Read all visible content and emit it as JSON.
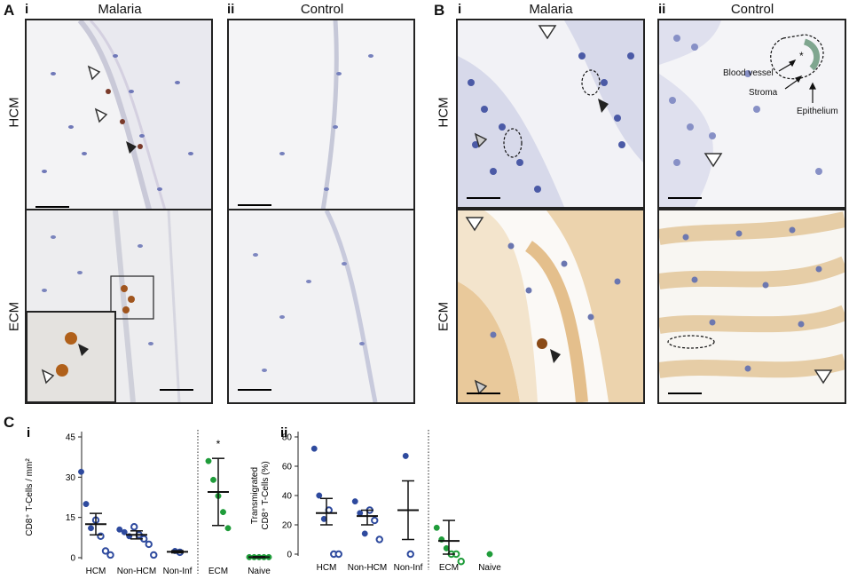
{
  "panel_a": {
    "letter": "A",
    "col_i": {
      "num": "i",
      "title": "Malaria"
    },
    "col_ii": {
      "num": "ii",
      "title": "Control"
    },
    "row_labels": [
      "HCM",
      "ECM"
    ]
  },
  "panel_b": {
    "letter": "B",
    "col_i": {
      "num": "i",
      "title": "Malaria"
    },
    "col_ii": {
      "num": "ii",
      "title": "Control"
    },
    "row_labels": [
      "HCM",
      "ECM"
    ],
    "annotations": {
      "blood_vessel": "Blood vessel",
      "stroma": "Stroma",
      "epithelium": "Epithelium",
      "asterisk": "*"
    }
  },
  "panel_c": {
    "letter": "C"
  },
  "chart_data": [
    {
      "type": "scatter",
      "panel": "i",
      "ylabel": "CD8⁺ T-Cells / mm²",
      "ylim": [
        0,
        45
      ],
      "yticks": [
        0,
        15,
        30,
        45
      ],
      "categories": [
        "HCM",
        "Non-HCM",
        "Non-Inf",
        "ECM",
        "Naive"
      ],
      "significance": {
        "category": "ECM",
        "mark": "*"
      },
      "groups": [
        {
          "category": "HCM",
          "color": "#2e4a9e",
          "mean": 12.5,
          "ci": [
            8.5,
            16.5
          ],
          "filled": [
            32,
            20,
            11
          ],
          "open": [
            14,
            8,
            2.5,
            1
          ]
        },
        {
          "category": "Non-HCM",
          "color": "#2e4a9e",
          "mean": 8.5,
          "ci": [
            7,
            10
          ],
          "filled": [
            10.5,
            9.5,
            8
          ],
          "open": [
            11.5,
            8.5,
            7,
            5,
            1
          ]
        },
        {
          "category": "Non-Inf",
          "color": "#2e4a9e",
          "mean": 2.2,
          "ci": [
            1.8,
            2.6
          ],
          "filled": [
            2.5
          ],
          "open": [
            2
          ]
        },
        {
          "category": "ECM",
          "color": "#1f9c3a",
          "mean": 24.5,
          "ci": [
            12,
            37
          ],
          "filled": [
            36,
            29,
            23,
            17,
            11
          ],
          "open": []
        },
        {
          "category": "Naive",
          "color": "#1f9c3a",
          "mean": 0.2,
          "ci": [
            0,
            0.4
          ],
          "filled": [
            0.2,
            0.2,
            0.2,
            0.2,
            0.2
          ],
          "open": []
        }
      ]
    },
    {
      "type": "scatter",
      "panel": "ii",
      "ylabel": "Transmigrated CD8⁺ T-Cells (%)",
      "ylim": [
        0,
        80
      ],
      "yticks": [
        0,
        20,
        40,
        60,
        80
      ],
      "categories": [
        "HCM",
        "Non-HCM",
        "Non-Inf",
        "ECM",
        "Naive"
      ],
      "groups": [
        {
          "category": "HCM",
          "color": "#2e4a9e",
          "mean": 28,
          "ci": [
            20,
            38
          ],
          "filled": [
            72,
            40,
            24
          ],
          "open": [
            30,
            0,
            0
          ]
        },
        {
          "category": "Non-HCM",
          "color": "#2e4a9e",
          "mean": 26,
          "ci": [
            20,
            30
          ],
          "filled": [
            36,
            28,
            14
          ],
          "open": [
            30,
            23,
            10
          ]
        },
        {
          "category": "Non-Inf",
          "color": "#2e4a9e",
          "mean": 30,
          "ci": [
            10,
            50
          ],
          "filled": [
            67
          ],
          "open": [
            0
          ]
        },
        {
          "category": "ECM",
          "color": "#1f9c3a",
          "mean": 9,
          "ci": [
            0,
            23
          ],
          "filled": [
            18,
            10,
            4
          ],
          "open": [
            0,
            0,
            -5
          ]
        },
        {
          "category": "Naive",
          "color": "#1f9c3a",
          "mean": null,
          "ci": null,
          "filled": [
            0
          ],
          "open": []
        }
      ]
    }
  ]
}
